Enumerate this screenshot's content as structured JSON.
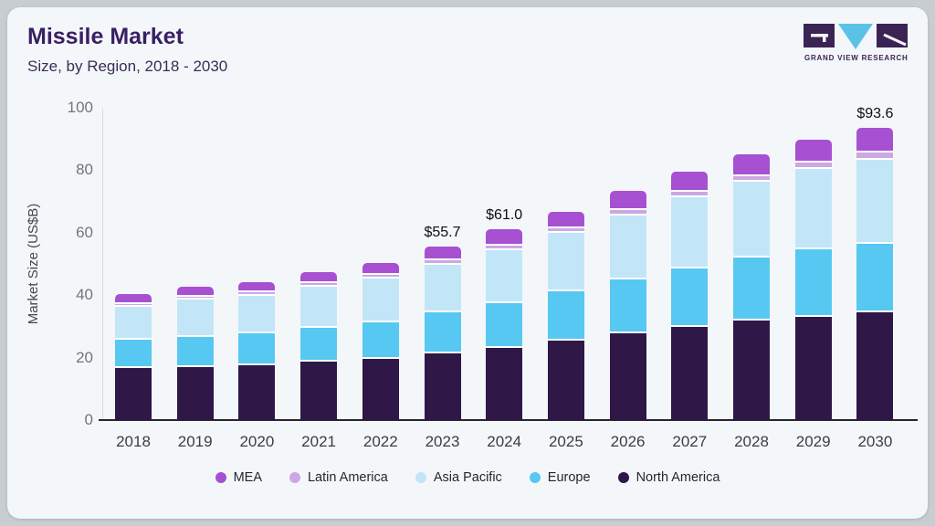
{
  "header": {
    "title": "Missile Market",
    "subtitle": "Size, by Region, 2018 - 2030"
  },
  "logo": {
    "name": "grand-view-research-logo",
    "text": "GRAND VIEW RESEARCH",
    "dark_color": "#3b2454",
    "accent_color": "#5bc2e7"
  },
  "chart_data": {
    "type": "bar",
    "stacked": true,
    "title": "Missile Market Size, by Region, 2018 - 2030",
    "xlabel": "",
    "ylabel": "Market Size (US$B)",
    "ylim": [
      0,
      100
    ],
    "yticks": [
      0,
      20,
      40,
      60,
      80,
      100
    ],
    "grid": false,
    "legend_position": "bottom",
    "categories": [
      "2018",
      "2019",
      "2020",
      "2021",
      "2022",
      "2023",
      "2024",
      "2025",
      "2026",
      "2027",
      "2028",
      "2029",
      "2030"
    ],
    "series": [
      {
        "name": "North America",
        "color": "#2f1747",
        "values": [
          17.2,
          17.5,
          18.1,
          19.2,
          20.2,
          22.0,
          23.8,
          26.0,
          28.4,
          30.5,
          32.4,
          33.7,
          35.0
        ]
      },
      {
        "name": "Europe",
        "color": "#57c8f2",
        "values": [
          9.0,
          9.8,
          10.2,
          11.0,
          11.8,
          13.0,
          14.3,
          15.9,
          17.2,
          18.7,
          20.2,
          21.6,
          22.1
        ]
      },
      {
        "name": "Asia Pacific",
        "color": "#c2e6f8",
        "values": [
          10.6,
          11.9,
          12.1,
          13.0,
          13.9,
          15.3,
          16.9,
          18.6,
          20.6,
          22.8,
          24.2,
          25.6,
          26.9
        ]
      },
      {
        "name": "Latin America",
        "color": "#cda7e4",
        "values": [
          0.9,
          0.9,
          1.0,
          1.1,
          1.2,
          1.4,
          1.5,
          1.6,
          1.6,
          1.7,
          1.8,
          2.0,
          2.2
        ]
      },
      {
        "name": "MEA",
        "color": "#a750d2",
        "values": [
          2.6,
          2.7,
          2.8,
          3.0,
          3.3,
          4.0,
          4.5,
          4.7,
          5.5,
          5.8,
          6.5,
          7.0,
          7.4
        ]
      }
    ],
    "totals": [
      40.3,
      42.8,
      44.2,
      47.3,
      50.4,
      55.7,
      61.0,
      66.8,
      73.3,
      79.5,
      85.1,
      89.9,
      93.6
    ],
    "bar_labels": {
      "2023": "$55.7",
      "2024": "$61.0",
      "2030": "$93.6"
    },
    "legend_order": [
      "MEA",
      "Latin America",
      "Asia Pacific",
      "Europe",
      "North America"
    ]
  },
  "colors": {
    "card_bg": "#f4f7fa",
    "outer_bg": "#c8cdd2",
    "axis_line": "#26262c",
    "y_axis_line": "#d8dcdf",
    "tick_text": "#71767c",
    "x_label_text": "#393e44",
    "title_text": "#3a1f63",
    "subtitle_text": "#392d55",
    "bar_label_text": "#0e0e14",
    "segment_gap": "#ffffff"
  }
}
